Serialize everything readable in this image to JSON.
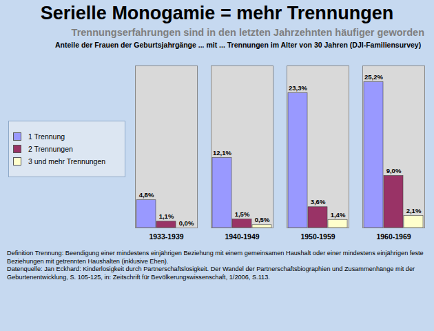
{
  "chart_data": {
    "type": "bar",
    "title": "Serielle Monogamie = mehr Trennungen",
    "subtitle": "Trennungserfahrungen sind in den letzten Jahrzehnten häufiger geworden",
    "annotations": [
      "Anteile der Frauen der Geburtsjahrgänge ... mit ... Trennungen  im Alter von 30 Jahren (DJI-Familiensurvey)",
      "Definition Trennung: Beendigung einer mindestens einjährigen Beziehung mit einem gemeinsamen Haushalt oder einer mindestens einjährigen feste Beziehungen mit getrennten Haushalten (inklusive Ehen).",
      "Datenquelle: Jan Eckhard: Kinderlosigkeit durch Partnerschaftslosigkeit. Der Wandel der Partnerschaftsbiographien und Zusammenhänge mit der Geburtenentwicklung, S. 105-125,  in: Zeitschrift für Bevölkerungswissenschaft, 1/2006, S.113."
    ],
    "categories": [
      "1933-1939",
      "1940-1949",
      "1950-1959",
      "1960-1969"
    ],
    "series": [
      {
        "name": "1 Trennung",
        "color": "#9999ff",
        "values": [
          4.8,
          12.1,
          23.3,
          25.2
        ],
        "value_labels": [
          "4,8%",
          "12,1%",
          "23,3%",
          "25,2%"
        ]
      },
      {
        "name": "2 Trennungen",
        "color": "#993366",
        "values": [
          1.1,
          1.5,
          3.6,
          9.0
        ],
        "value_labels": [
          "1,1%",
          "1,5%",
          "3,6%",
          "9,0%"
        ]
      },
      {
        "name": "3 und mehr Trennungen",
        "color": "#ffffcc",
        "values": [
          0.0,
          0.5,
          1.4,
          2.1
        ],
        "value_labels": [
          "0,0%",
          "0,5%",
          "1,4%",
          "2,1%"
        ]
      }
    ],
    "ylim": [
      0,
      28
    ],
    "data_labels": true,
    "tick_labels": "x",
    "legend": "left",
    "grid": false
  }
}
